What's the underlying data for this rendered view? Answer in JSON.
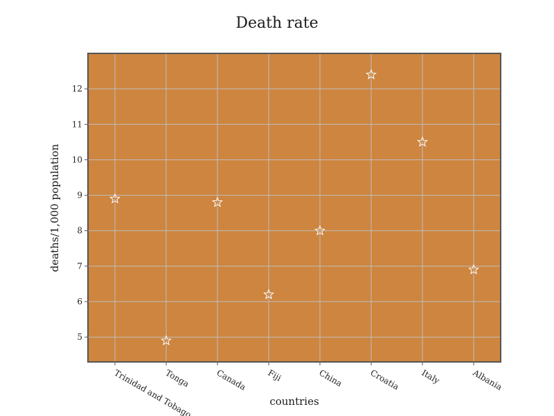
{
  "chart_data": {
    "type": "scatter",
    "title": "Death rate",
    "xlabel": "countries",
    "ylabel": "deaths/1,000 population",
    "categories": [
      "Trinidad and Tobago",
      "Tonga",
      "Canada",
      "Fiji",
      "China",
      "Croatia",
      "Italy",
      "Albania"
    ],
    "values": [
      8.9,
      4.9,
      8.8,
      6.2,
      8.0,
      12.4,
      10.5,
      6.9
    ],
    "ylim": [
      4.3,
      13.0
    ],
    "yticks": [
      5,
      6,
      7,
      8,
      9,
      10,
      11,
      12
    ],
    "grid": true,
    "marker": "star",
    "colors": {
      "plot_background": "#cd853f",
      "frame": "#555555",
      "grid": "#c0c0c0",
      "marker_stroke": "#ffffff"
    }
  }
}
